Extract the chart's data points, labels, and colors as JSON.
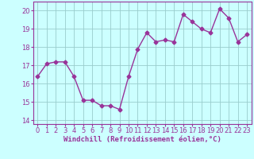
{
  "x": [
    0,
    1,
    2,
    3,
    4,
    5,
    6,
    7,
    8,
    9,
    10,
    11,
    12,
    13,
    14,
    15,
    16,
    17,
    18,
    19,
    20,
    21,
    22,
    23
  ],
  "y": [
    16.4,
    17.1,
    17.2,
    17.2,
    16.4,
    15.1,
    15.1,
    14.8,
    14.8,
    14.6,
    16.4,
    17.9,
    18.8,
    18.3,
    18.4,
    18.3,
    19.8,
    19.4,
    19.0,
    18.8,
    20.1,
    19.6,
    18.3,
    18.7
  ],
  "line_color": "#993399",
  "marker": "D",
  "marker_size": 2.5,
  "bg_color": "#ccffff",
  "grid_color": "#99cccc",
  "xlabel": "Windchill (Refroidissement éolien,°C)",
  "ylim": [
    13.8,
    20.5
  ],
  "xlim": [
    -0.5,
    23.5
  ],
  "yticks": [
    14,
    15,
    16,
    17,
    18,
    19,
    20
  ],
  "xticks": [
    0,
    1,
    2,
    3,
    4,
    5,
    6,
    7,
    8,
    9,
    10,
    11,
    12,
    13,
    14,
    15,
    16,
    17,
    18,
    19,
    20,
    21,
    22,
    23
  ],
  "tick_color": "#993399",
  "label_color": "#993399",
  "font_size_xlabel": 6.5,
  "font_size_ticks": 6.0,
  "linewidth": 1.0
}
